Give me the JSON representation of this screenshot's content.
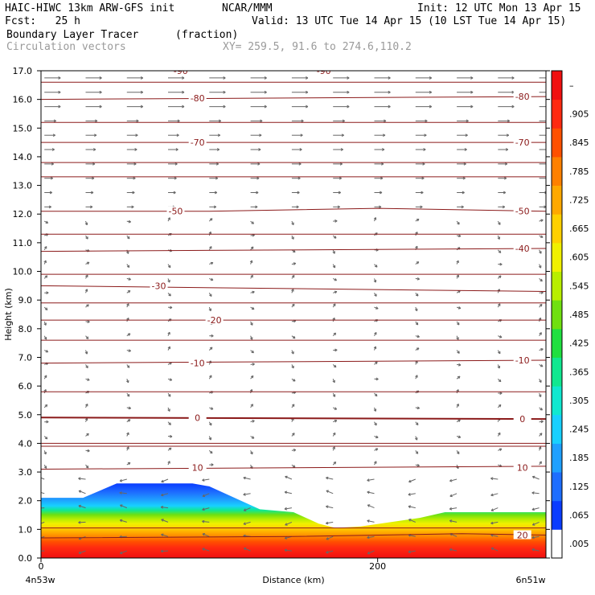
{
  "header": {
    "model": "HAIC-HIWC 13km ARW-GFS init",
    "org": "NCAR/MMM",
    "init": "Init: 12 UTC Mon 13 Apr 15",
    "fcst": "Fcst:   25 h",
    "valid": "Valid: 13 UTC Tue 14 Apr 15 (10 LST Tue 14 Apr 15)",
    "field1": "Boundary Layer Tracer",
    "field1_units": "(fraction)",
    "field2": "Circulation vectors",
    "xy": "XY= 259.5, 91.6 to 274.6,110.2"
  },
  "chart_data": {
    "type": "heatmap",
    "xlabel": "Distance (km)",
    "ylabel": "Height (km)",
    "xlim": [
      0,
      300
    ],
    "ylim": [
      0,
      17
    ],
    "x_ticks": [
      {
        "value": 0,
        "label": "0"
      },
      {
        "value": 200,
        "label": "200"
      }
    ],
    "x_end_labels": {
      "left": "4n53w",
      "right": "6n51w"
    },
    "y_ticks": [
      "0.0",
      "1.0",
      "2.0",
      "3.0",
      "4.0",
      "5.0",
      "6.0",
      "7.0",
      "8.0",
      "9.0",
      "10.0",
      "11.0",
      "12.0",
      "13.0",
      "14.0",
      "15.0",
      "16.0",
      "17.0"
    ],
    "colorbar": {
      "labels": [
        ".005",
        ".065",
        ".125",
        ".185",
        ".245",
        ".305",
        ".365",
        ".425",
        ".485",
        ".545",
        ".605",
        ".665",
        ".725",
        ".785",
        ".845",
        ".905",
        "–"
      ],
      "colors": [
        "#ffffff",
        "#0a3cff",
        "#1e6eff",
        "#1fa0ff",
        "#18d0ff",
        "#10e8d0",
        "#10e890",
        "#20e040",
        "#70e010",
        "#b8ee00",
        "#f0f000",
        "#ffd000",
        "#ffa800",
        "#ff8000",
        "#ff5000",
        "#ff2a10",
        "#f01010"
      ]
    },
    "tracer_profile": {
      "x_km": [
        0,
        25,
        45,
        90,
        100,
        130,
        150,
        165,
        175,
        190,
        225,
        240,
        270,
        300
      ],
      "top_height_km": [
        2.1,
        2.1,
        2.6,
        2.6,
        2.5,
        1.7,
        1.6,
        1.2,
        1.05,
        1.1,
        1.4,
        1.6,
        1.6,
        1.6
      ]
    },
    "contour_interval": 10,
    "contours": [
      {
        "label": "20",
        "x_km": [
          0,
          150,
          250,
          300
        ],
        "y_km": [
          0.7,
          0.75,
          0.85,
          0.8
        ],
        "label_pos": [
          [
            286,
            0.8
          ]
        ]
      },
      {
        "label": "10",
        "x_km": [
          0,
          300
        ],
        "y_km": [
          3.1,
          3.2
        ],
        "label_pos": [
          [
            93,
            3.15
          ],
          [
            286,
            3.15
          ]
        ]
      },
      {
        "label": "0",
        "x_km": [
          0,
          300
        ],
        "y_km": [
          4.9,
          4.85
        ],
        "label_pos": [
          [
            93,
            4.9
          ],
          [
            286,
            4.85
          ]
        ]
      },
      {
        "label": "-10",
        "x_km": [
          0,
          300
        ],
        "y_km": [
          6.8,
          6.9
        ],
        "label_pos": [
          [
            93,
            6.8
          ],
          [
            286,
            6.9
          ]
        ]
      },
      {
        "label": "-20",
        "x_km": [
          0,
          300
        ],
        "y_km": [
          8.3,
          8.3
        ],
        "label_pos": [
          [
            103,
            8.3
          ]
        ]
      },
      {
        "label": "-30",
        "x_km": [
          0,
          300
        ],
        "y_km": [
          9.5,
          9.3
        ],
        "label_pos": [
          [
            70,
            9.5
          ]
        ]
      },
      {
        "label": "-40",
        "x_km": [
          0,
          300
        ],
        "y_km": [
          10.7,
          10.8
        ],
        "label_pos": [
          [
            286,
            10.8
          ]
        ]
      },
      {
        "label": "-50",
        "x_km": [
          0,
          100,
          200,
          300
        ],
        "y_km": [
          12.1,
          12.1,
          12.2,
          12.1
        ],
        "label_pos": [
          [
            80,
            12.1
          ],
          [
            286,
            12.1
          ]
        ]
      },
      {
        "label": "-70",
        "x_km": [
          0,
          300
        ],
        "y_km": [
          14.5,
          14.5
        ],
        "label_pos": [
          [
            93,
            14.5
          ],
          [
            286,
            14.5
          ]
        ]
      },
      {
        "label": "-80",
        "x_km": [
          0,
          300
        ],
        "y_km": [
          16.0,
          16.1
        ],
        "label_pos": [
          [
            93,
            16.05
          ],
          [
            286,
            16.1
          ]
        ]
      },
      {
        "label": "-90",
        "x_km": [
          0,
          300
        ],
        "y_km": [
          17.05,
          17.05
        ],
        "label_pos": [
          [
            83,
            17.0
          ],
          [
            168,
            17.0
          ]
        ]
      }
    ],
    "extra_isotherms_km": [
      0.0,
      1.05,
      3.9,
      4.0,
      5.8,
      7.6,
      8.9,
      9.9,
      11.3,
      13.3,
      13.8,
      15.2,
      16.6
    ]
  }
}
